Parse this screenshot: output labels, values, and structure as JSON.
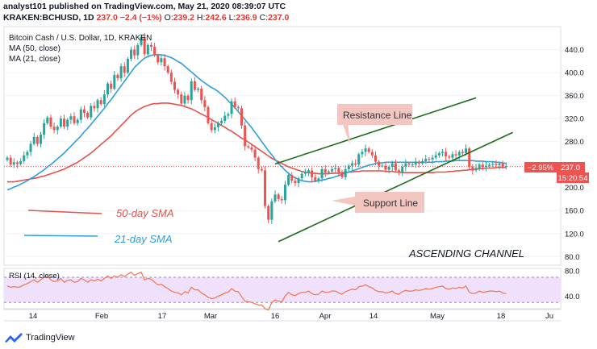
{
  "header": {
    "line1": "analyst101 published on TradingView.com, May 21, 2020 08:39:07 UTC",
    "symbol": "KRAKEN:BCHUSD, 1D",
    "last": "237.0",
    "change": "−2.4 (−1%)",
    "o_label": "O:",
    "o": "239.2",
    "h_label": "H:",
    "h": "242.6",
    "l_label": "L:",
    "l": "236.9",
    "c_label": "C:",
    "c": "237.0"
  },
  "legend": {
    "title": "Bitcoin Cash / U.S. Dollar, 1D, KRAKEN",
    "ma50": "MA (50, close)",
    "ma21": "MA (21, close)"
  },
  "annotations": {
    "sma50": "50-day SMA",
    "sma21": "21-day SMA",
    "resistance": "Resistance Line",
    "support": "Support Line",
    "channel": "ASCENDING CHANNEL"
  },
  "price_tags": {
    "pct": "−2.95%",
    "price": "237.0",
    "time": "15:20:54"
  },
  "rsi_label": "RSI (14, close)",
  "footer_brand": "TradingView",
  "colors": {
    "up": "#26a69a",
    "down": "#ef5350",
    "ma50": "#e5514b",
    "ma21": "#2d9fd9",
    "channel": "#1e6b1e",
    "rsi": "#f2744d",
    "rsi_band": "#efe0fb"
  },
  "chart_data": [
    {
      "type": "candlestick",
      "title": "Bitcoin Cash / U.S. Dollar, 1D, KRAKEN",
      "x_ticks": [
        "14",
        "Feb",
        "17",
        "Mar",
        "16",
        "Apr",
        "14",
        "May",
        "18",
        "Ju"
      ],
      "y_ticks": [
        80,
        120,
        160,
        200,
        240,
        280,
        320,
        360,
        400,
        440
      ],
      "ylim": [
        65,
        480
      ],
      "close": [
        252,
        240,
        244,
        241,
        246,
        256,
        262,
        276,
        288,
        276,
        292,
        312,
        322,
        306,
        300,
        306,
        320,
        306,
        318,
        324,
        312,
        318,
        336,
        330,
        322,
        342,
        338,
        352,
        345,
        362,
        381,
        372,
        396,
        390,
        411,
        400,
        424,
        440,
        430,
        448,
        462,
        432,
        448,
        445,
        430,
        418,
        425,
        411,
        400,
        384,
        370,
        362,
        346,
        360,
        352,
        385,
        370,
        372,
        352,
        340,
        312,
        300,
        305,
        312,
        316,
        325,
        328,
        350,
        340,
        338,
        308,
        272,
        270,
        266,
        252,
        232,
        230,
        168,
        144,
        176,
        188,
        180,
        178,
        205,
        222,
        212,
        208,
        216,
        224,
        226,
        230,
        218,
        212,
        216,
        232,
        226,
        228,
        232,
        234,
        226,
        218,
        232,
        238,
        242,
        240,
        258,
        262,
        268,
        262,
        256,
        245,
        238,
        238,
        231,
        236,
        242,
        230,
        226,
        236,
        242,
        240,
        240,
        245,
        242,
        246,
        250,
        249,
        252,
        256,
        260,
        262,
        254,
        252,
        258,
        256,
        262,
        260,
        268,
        236,
        230,
        234,
        240,
        236,
        238,
        240,
        241,
        239,
        242,
        236,
        237
      ],
      "ma50": [
        210,
        210,
        210,
        211,
        212,
        213,
        214,
        215,
        216,
        217,
        219,
        220,
        222,
        224,
        226,
        228,
        230,
        232,
        235,
        238,
        241,
        244,
        248,
        252,
        256,
        260,
        265,
        270,
        275,
        280,
        285,
        290,
        296,
        302,
        308,
        314,
        320,
        326,
        331,
        335,
        338,
        341,
        343,
        345,
        346,
        346,
        347,
        347,
        347,
        346,
        345,
        344,
        343,
        341,
        339,
        337,
        334,
        331,
        328,
        325,
        322,
        318,
        315,
        312,
        308,
        305,
        301,
        298,
        294,
        290,
        286,
        283,
        279,
        275,
        271,
        267,
        263,
        259,
        255,
        251,
        248,
        245,
        242,
        239,
        236,
        234,
        232,
        230,
        228,
        227,
        226,
        225,
        225,
        224,
        224,
        224,
        224,
        225,
        225,
        225,
        226,
        226,
        227,
        227,
        228,
        228,
        229,
        229,
        229,
        229,
        229,
        229,
        229,
        228,
        228,
        228,
        227,
        227,
        226,
        226,
        226,
        226,
        226,
        226,
        226,
        226,
        226,
        226,
        227,
        227,
        227,
        227,
        228,
        228,
        229,
        229,
        230,
        230,
        231,
        231,
        232,
        233,
        233,
        234,
        234,
        234,
        235,
        235,
        235,
        235
      ],
      "ma21": [
        196,
        198,
        201,
        203,
        206,
        209,
        212,
        216,
        219,
        223,
        227,
        231,
        236,
        240,
        245,
        250,
        255,
        260,
        266,
        272,
        278,
        284,
        290,
        297,
        303,
        310,
        317,
        324,
        331,
        338,
        346,
        353,
        361,
        369,
        377,
        385,
        393,
        401,
        409,
        415,
        420,
        425,
        428,
        430,
        431,
        431,
        431,
        430,
        428,
        426,
        423,
        419,
        416,
        411,
        406,
        401,
        396,
        391,
        386,
        382,
        378,
        374,
        371,
        367,
        362,
        357,
        351,
        345,
        339,
        332,
        325,
        318,
        311,
        304,
        296,
        288,
        280,
        272,
        264,
        257,
        249,
        242,
        236,
        230,
        225,
        220,
        217,
        214,
        212,
        211,
        210,
        210,
        211,
        212,
        213,
        214,
        216,
        217,
        219,
        221,
        223,
        225,
        227,
        229,
        231,
        233,
        235,
        237,
        239,
        240,
        242,
        243,
        243,
        244,
        244,
        244,
        244,
        244,
        244,
        244,
        244,
        244,
        244,
        244,
        244,
        244,
        244,
        244,
        245,
        245,
        245,
        246,
        246,
        246,
        247,
        247,
        247,
        247,
        247,
        247,
        246,
        246,
        246,
        245,
        245,
        245,
        244,
        244,
        243,
        242
      ],
      "resistance_line": {
        "from": {
          "bar": 80,
          "price": 241
        },
        "to": {
          "bar": 140,
          "price": 356
        }
      },
      "support_line": {
        "from": {
          "bar": 81,
          "price": 106
        },
        "to": {
          "bar": 151,
          "price": 296
        }
      },
      "last_price": 237.0
    },
    {
      "type": "line",
      "title": "RSI (14, close)",
      "y_ticks": [
        40,
        80
      ],
      "ylim": [
        20,
        84
      ],
      "band": [
        30,
        70
      ],
      "values": [
        56,
        54,
        55,
        54,
        55,
        58,
        60,
        63,
        66,
        62,
        66,
        70,
        72,
        66,
        63,
        64,
        68,
        62,
        65,
        66,
        62,
        63,
        68,
        66,
        62,
        66,
        64,
        67,
        64,
        68,
        72,
        68,
        72,
        70,
        74,
        71,
        75,
        78,
        73,
        76,
        78,
        66,
        68,
        67,
        62,
        58,
        59,
        55,
        52,
        48,
        46,
        45,
        42,
        47,
        45,
        54,
        50,
        50,
        45,
        42,
        38,
        36,
        37,
        40,
        42,
        45,
        46,
        52,
        48,
        47,
        39,
        32,
        31,
        30,
        28,
        26,
        26,
        20,
        18,
        30,
        34,
        32,
        31,
        40,
        46,
        42,
        41,
        44,
        46,
        46,
        48,
        44,
        42,
        43,
        48,
        46,
        46,
        48,
        48,
        45,
        43,
        47,
        49,
        51,
        50,
        55,
        56,
        58,
        55,
        53,
        49,
        47,
        47,
        45,
        46,
        48,
        44,
        43,
        47,
        49,
        48,
        48,
        50,
        49,
        50,
        52,
        51,
        52,
        54,
        55,
        56,
        52,
        51,
        53,
        52,
        54,
        53,
        56,
        46,
        44,
        45,
        48,
        46,
        47,
        48,
        48,
        47,
        48,
        45,
        44
      ]
    }
  ]
}
